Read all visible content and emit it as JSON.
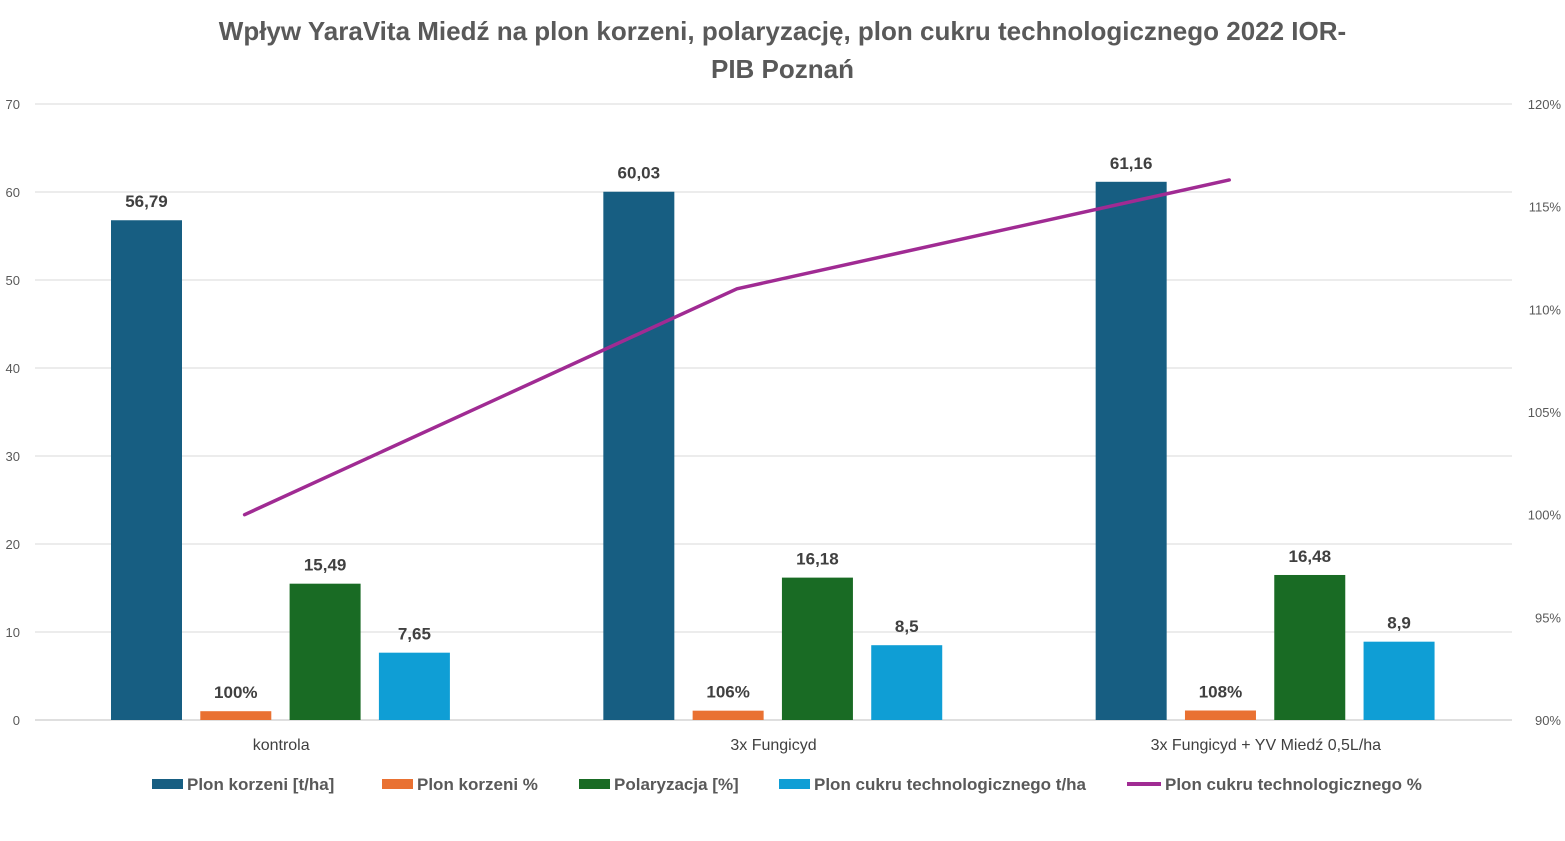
{
  "chart_data": {
    "type": "bar",
    "title_lines": [
      "Wpływ YaraVita Miedź na plon korzeni, polaryzację, plon cukru technologicznego 2022 IOR-",
      "PIB Poznań"
    ],
    "categories": [
      "kontrola",
      "3x Fungicyd",
      "3x Fungicyd + YV Miedź 0,5L/ha"
    ],
    "ylim": [
      0,
      70
    ],
    "y_ticks": [
      0,
      10,
      20,
      30,
      40,
      50,
      60,
      70
    ],
    "y_tick_labels": [
      "0",
      "10",
      "20",
      "30",
      "40",
      "50",
      "60",
      "70"
    ],
    "y2lim": [
      0.9,
      1.2
    ],
    "y2_ticks": [
      0.9,
      0.95,
      1.0,
      1.05,
      1.1,
      1.15,
      1.2
    ],
    "y2_tick_labels": [
      "90%",
      "95%",
      "100%",
      "105%",
      "110%",
      "115%",
      "120%"
    ],
    "grid": true,
    "legend_position": "bottom",
    "series": [
      {
        "name": "Plon korzeni [t/ha]",
        "kind": "bar",
        "axis": "left",
        "color": "#175e82",
        "values": [
          56.79,
          60.03,
          61.16
        ],
        "labels": [
          "56,79",
          "60,03",
          "61,16"
        ]
      },
      {
        "name": "Plon korzeni %",
        "kind": "bar",
        "axis": "left",
        "color": "#e97132",
        "values": [
          1.0,
          1.06,
          1.08
        ],
        "labels": [
          "100%",
          "106%",
          "108%"
        ]
      },
      {
        "name": "Polaryzacja [%]",
        "kind": "bar",
        "axis": "left",
        "color": "#196b24",
        "values": [
          15.49,
          16.18,
          16.48
        ],
        "labels": [
          "15,49",
          "16,18",
          "16,48"
        ]
      },
      {
        "name": "Plon cukru technologicznego t/ha",
        "kind": "bar",
        "axis": "left",
        "color": "#0f9ed5",
        "values": [
          7.65,
          8.5,
          8.9
        ],
        "labels": [
          "7,65",
          "8,5",
          "8,9"
        ]
      },
      {
        "name": "Plon cukru technologicznego %",
        "kind": "line",
        "axis": "right",
        "color": "#a02b93",
        "values": [
          1.0,
          1.11,
          1.163
        ]
      }
    ]
  }
}
